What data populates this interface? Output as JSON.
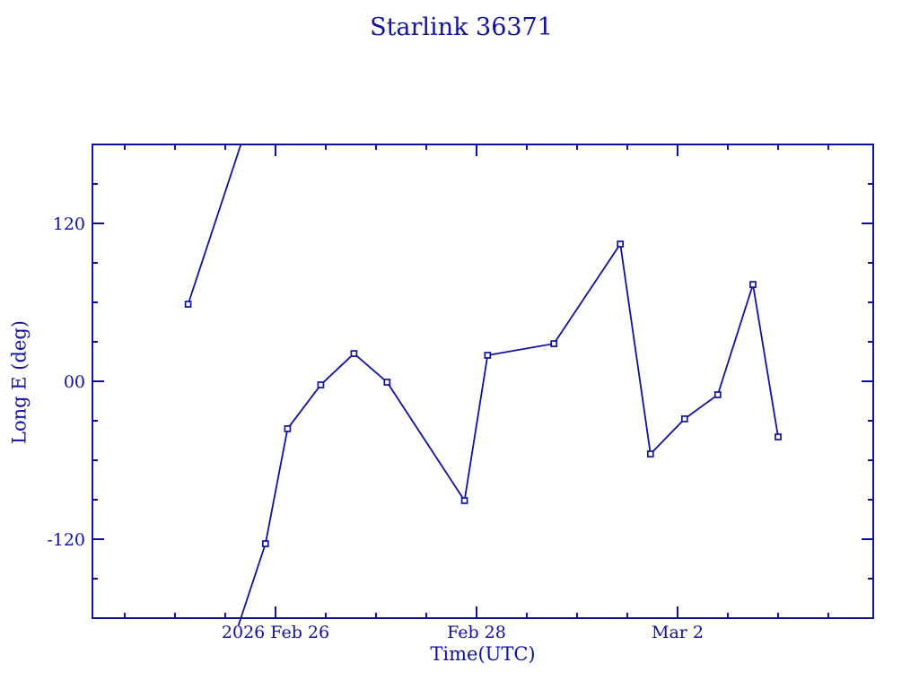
{
  "chart_data": {
    "type": "line",
    "title": "Starlink 36371",
    "xlabel": "Time(UTC)",
    "ylabel": "Long E (deg)",
    "color": "#10109E",
    "background": "#FFFFFF",
    "grid": false,
    "legend": false,
    "marker": "open-square",
    "x_encoding": "days relative to 2026 Feb 26 00:00 UTC",
    "xlim": [
      -1.8214,
      5.9464
    ],
    "ylim": [
      -180,
      180
    ],
    "y_wraps_at": 180,
    "x_major_ticks": [
      {
        "t": 0,
        "label": "2026 Feb 26"
      },
      {
        "t": 2,
        "label": "Feb 28"
      },
      {
        "t": 4,
        "label": "Mar  2"
      }
    ],
    "x_minor_step": 0.5,
    "y_major_ticks": [
      {
        "v": 120,
        "label": "120"
      },
      {
        "v": 0,
        "label": "00"
      },
      {
        "v": -120,
        "label": "-120"
      }
    ],
    "y_minor_step": 30,
    "series": [
      {
        "name": "Starlink 36371 east longitude",
        "points": [
          {
            "t": -0.87,
            "deg": 58.6
          },
          {
            "t": -0.1,
            "deg": -123.5
          },
          {
            "t": 0.12,
            "deg": -36.1
          },
          {
            "t": 0.45,
            "deg": -2.7
          },
          {
            "t": 0.78,
            "deg": 21.1
          },
          {
            "t": 1.11,
            "deg": -0.7
          },
          {
            "t": 1.88,
            "deg": -90.7
          },
          {
            "t": 2.11,
            "deg": 19.8
          },
          {
            "t": 2.77,
            "deg": 28.6
          },
          {
            "t": 3.43,
            "deg": 104.3
          },
          {
            "t": 3.73,
            "deg": -55.2
          },
          {
            "t": 4.07,
            "deg": -28.6
          },
          {
            "t": 4.4,
            "deg": -10.2
          },
          {
            "t": 4.75,
            "deg": 73.6
          },
          {
            "t": 5.0,
            "deg": -42.3
          }
        ]
      }
    ]
  }
}
